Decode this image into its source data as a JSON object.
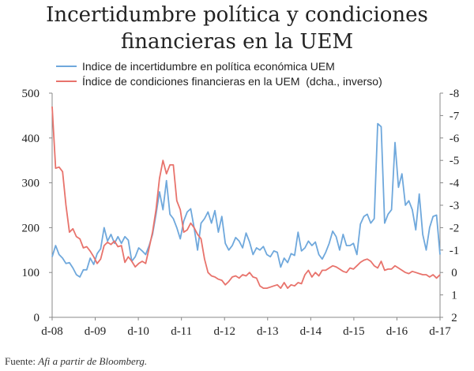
{
  "title_line1": "Incertidumbre política y condiciones",
  "title_line2": "financieras en la UEM",
  "source_prefix": "Fuente: ",
  "source_italic": "Afi a partir de Bloomberg.",
  "chart_data": {
    "type": "line",
    "title": "Incertidumbre política y condiciones financieras en la UEM",
    "x_tick_labels": [
      "d-08",
      "d-09",
      "d-10",
      "d-11",
      "d-12",
      "d-13",
      "d-14",
      "d-15",
      "d-16",
      "d-17"
    ],
    "left_axis": {
      "range": [
        0,
        500
      ],
      "ticks": [
        "0",
        "100",
        "200",
        "300",
        "400",
        "500"
      ]
    },
    "right_axis": {
      "range": [
        2,
        -8
      ],
      "inverted": true,
      "ticks": [
        "2",
        "1",
        "0",
        "-1",
        "-2",
        "-3",
        "-4",
        "-5",
        "-6",
        "-7",
        "-8"
      ]
    },
    "grid": false,
    "legend_position": "top",
    "series": [
      {
        "name": "Indice de incertidumbre en política económica UEM",
        "axis": "left",
        "color": "#6fa8dc",
        "values": [
          135,
          160,
          140,
          132,
          120,
          122,
          110,
          95,
          90,
          106,
          106,
          132,
          118,
          142,
          153,
          200,
          170,
          185,
          165,
          180,
          165,
          180,
          172,
          125,
          135,
          155,
          148,
          140,
          160,
          185,
          230,
          280,
          240,
          305,
          230,
          220,
          200,
          175,
          215,
          235,
          242,
          200,
          150,
          210,
          220,
          235,
          210,
          238,
          190,
          225,
          165,
          150,
          160,
          178,
          170,
          155,
          188,
          168,
          140,
          155,
          150,
          158,
          140,
          135,
          148,
          145,
          112,
          132,
          122,
          142,
          138,
          190,
          148,
          155,
          170,
          160,
          168,
          140,
          130,
          145,
          165,
          192,
          180,
          150,
          185,
          160,
          160,
          165,
          140,
          208,
          225,
          230,
          210,
          220,
          432,
          425,
          210,
          230,
          240,
          390,
          290,
          320,
          250,
          260,
          240,
          195,
          275,
          185,
          150,
          200,
          225,
          228,
          140
        ]
      },
      {
        "name": "Índice de condiciones financieras en la UEM  (dcha., inverso)",
        "axis": "right",
        "color": "#e8736c",
        "values": [
          -7.4,
          -4.65,
          -4.7,
          -4.5,
          -3.0,
          -1.8,
          -1.95,
          -1.6,
          -1.5,
          -1.1,
          -1.15,
          -0.95,
          -0.7,
          -0.4,
          -0.6,
          -1.2,
          -1.35,
          -1.25,
          -1.4,
          -1.15,
          -1.2,
          -0.45,
          -0.7,
          -0.5,
          -0.25,
          -0.4,
          -0.5,
          -0.4,
          -1.1,
          -1.8,
          -2.8,
          -4.2,
          -5.0,
          -4.4,
          -4.8,
          -4.8,
          -3.2,
          -2.8,
          -1.8,
          -1.9,
          -2.2,
          -2.0,
          -1.7,
          -1.5,
          -0.6,
          0.0,
          0.15,
          0.2,
          0.3,
          0.35,
          0.55,
          0.4,
          0.2,
          0.15,
          0.25,
          0.1,
          0.15,
          0.0,
          0.2,
          0.25,
          0.6,
          0.7,
          0.7,
          0.65,
          0.6,
          0.55,
          0.7,
          0.45,
          0.7,
          0.55,
          0.6,
          0.45,
          0.5,
          0.1,
          -0.1,
          0.2,
          0.0,
          0.15,
          -0.1,
          -0.1,
          -0.2,
          -0.3,
          -0.25,
          -0.15,
          -0.05,
          0.0,
          -0.2,
          -0.15,
          -0.3,
          -0.45,
          -0.55,
          -0.6,
          -0.5,
          -0.3,
          -0.2,
          -0.5,
          -0.1,
          -0.15,
          -0.15,
          -0.3,
          -0.2,
          -0.1,
          0.0,
          0.05,
          -0.05,
          0.0,
          0.05,
          0.1,
          0.1,
          0.2,
          0.1,
          0.25,
          0.1
        ]
      }
    ]
  }
}
